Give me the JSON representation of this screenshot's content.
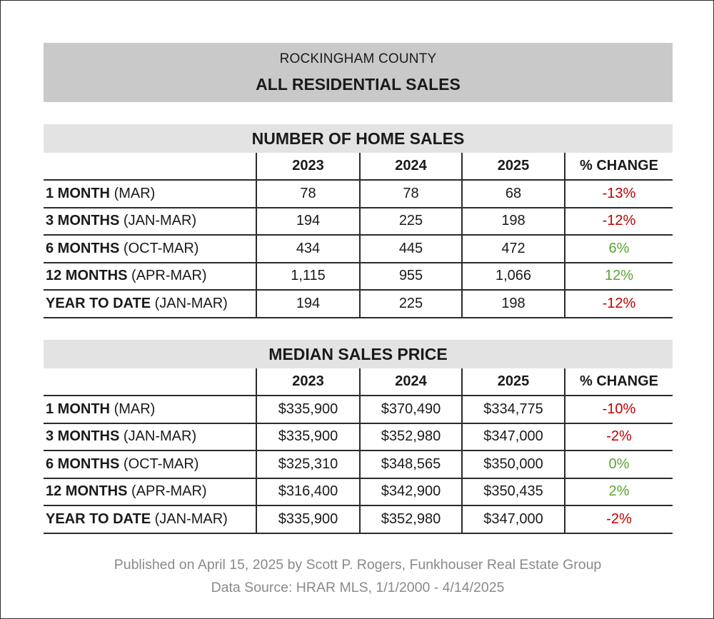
{
  "header": {
    "county": "ROCKINGHAM COUNTY",
    "title": "ALL RESIDENTIAL SALES"
  },
  "sales": {
    "title": "NUMBER OF HOME SALES",
    "columns": [
      "2023",
      "2024",
      "2025",
      "% CHANGE"
    ],
    "rows": [
      {
        "label": "1 MONTH",
        "period": "(MAR)",
        "v2023": "78",
        "v2024": "78",
        "v2025": "68",
        "change": "-13%",
        "direction": "negative"
      },
      {
        "label": "3 MONTHS",
        "period": "(JAN-MAR)",
        "v2023": "194",
        "v2024": "225",
        "v2025": "198",
        "change": "-12%",
        "direction": "negative"
      },
      {
        "label": "6 MONTHS",
        "period": "(OCT-MAR)",
        "v2023": "434",
        "v2024": "445",
        "v2025": "472",
        "change": "6%",
        "direction": "positive"
      },
      {
        "label": "12 MONTHS",
        "period": "(APR-MAR)",
        "v2023": "1,115",
        "v2024": "955",
        "v2025": "1,066",
        "change": "12%",
        "direction": "positive"
      },
      {
        "label": "YEAR TO DATE",
        "period": "(JAN-MAR)",
        "v2023": "194",
        "v2024": "225",
        "v2025": "198",
        "change": "-12%",
        "direction": "negative"
      }
    ]
  },
  "price": {
    "title": "MEDIAN SALES PRICE",
    "columns": [
      "2023",
      "2024",
      "2025",
      "% CHANGE"
    ],
    "rows": [
      {
        "label": "1 MONTH",
        "period": "(MAR)",
        "v2023": "$335,900",
        "v2024": "$370,490",
        "v2025": "$334,775",
        "change": "-10%",
        "direction": "negative"
      },
      {
        "label": "3 MONTHS",
        "period": "(JAN-MAR)",
        "v2023": "$335,900",
        "v2024": "$352,980",
        "v2025": "$347,000",
        "change": "-2%",
        "direction": "negative"
      },
      {
        "label": "6 MONTHS",
        "period": "(OCT-MAR)",
        "v2023": "$325,310",
        "v2024": "$348,565",
        "v2025": "$350,000",
        "change": "0%",
        "direction": "positive"
      },
      {
        "label": "12 MONTHS",
        "period": "(APR-MAR)",
        "v2023": "$316,400",
        "v2024": "$342,900",
        "v2025": "$350,435",
        "change": "2%",
        "direction": "positive"
      },
      {
        "label": "YEAR TO DATE",
        "period": "(JAN-MAR)",
        "v2023": "$335,900",
        "v2024": "$352,980",
        "v2025": "$347,000",
        "change": "-2%",
        "direction": "negative"
      }
    ]
  },
  "colors": {
    "negative": "#c00000",
    "positive": "#5aa532",
    "header_bg": "#c9c9c9",
    "section_bg": "#e3e3e3"
  },
  "footer": {
    "published": "Published on April 15, 2025 by Scott P. Rogers, Funkhouser Real Estate Group",
    "source": "Data Source: HRAR MLS, 1/1/2000 - 4/14/2025"
  }
}
